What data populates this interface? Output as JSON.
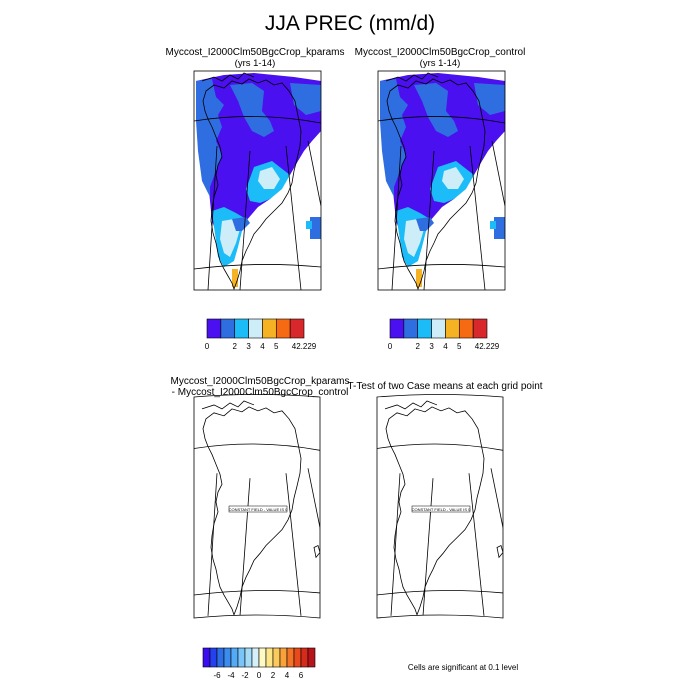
{
  "figure": {
    "title": "JJA PREC (mm/d)"
  },
  "panels": {
    "kparams": {
      "title": "Myccost_I2000Clm50BgcCrop_kparams",
      "years": "(yrs 1-14)"
    },
    "control": {
      "title": "Myccost_I2000Clm50BgcCrop_control",
      "years": "(yrs 1-14)"
    },
    "difference": {
      "title_line1": "Myccost_I2000Clm50BgcCrop_kparams",
      "title_line2": "- Myccost_I2000Clm50BgcCrop_control",
      "center_label": "CONSTANT FIELD - VALUE IS 0"
    },
    "ttest": {
      "title": "T-Test of two Case means at each grid point",
      "center_label": "CONSTANT FIELD - VALUE IS 0",
      "note": "Cells are significant at 0.1 level"
    }
  },
  "chart_data": [
    {
      "type": "heatmap",
      "name": "Myccost_I2000Clm50BgcCrop_kparams (yrs 1-14)",
      "colorbar": {
        "tick_labels": [
          "0",
          "2",
          "3",
          "4",
          "5",
          "42.229"
        ],
        "levels": [
          0,
          1,
          2,
          3,
          4,
          5,
          6,
          42.229
        ],
        "colors": [
          "#4a10ef",
          "#2f6ee0",
          "#4aa6ee",
          "#1bbcf7",
          "#cdeef8",
          "#f5b324",
          "#f56a12",
          "#d9282b"
        ]
      },
      "regions_mm_per_day": {
        "north_interior": "0-1",
        "north_coast": "1-2",
        "central_interior": "0-1",
        "southwest_coast": "1-3",
        "south_interior": "3-4",
        "southern_tip": "4-5"
      }
    },
    {
      "type": "heatmap",
      "name": "Myccost_I2000Clm50BgcCrop_control (yrs 1-14)",
      "colorbar": {
        "tick_labels": [
          "0",
          "2",
          "3",
          "4",
          "5",
          "42.229"
        ],
        "levels": [
          0,
          1,
          2,
          3,
          4,
          5,
          6,
          42.229
        ],
        "colors": [
          "#4a10ef",
          "#2f6ee0",
          "#4aa6ee",
          "#1bbcf7",
          "#cdeef8",
          "#f5b324",
          "#f56a12",
          "#d9282b"
        ]
      },
      "regions_mm_per_day": {
        "north_interior": "0-1",
        "north_coast": "1-2",
        "central_interior": "0-1",
        "southwest_coast": "1-3",
        "south_interior": "3-4",
        "southern_tip": "4-5"
      }
    },
    {
      "type": "heatmap",
      "name": "kparams - control",
      "constant_value": 0,
      "colorbar": {
        "tick_labels": [
          "-6",
          "-4",
          "-2",
          "0",
          "2",
          "4",
          "6"
        ],
        "colors": [
          "#3b0ef0",
          "#2540ee",
          "#2d6ee5",
          "#3c8cf0",
          "#55aaf5",
          "#79c5f7",
          "#a4dcf8",
          "#d6f0fa",
          "#fff9c4",
          "#fde68a",
          "#fcc95c",
          "#f9a23a",
          "#f37426",
          "#e84a1d",
          "#d62a1a",
          "#b7131b"
        ]
      }
    },
    {
      "type": "heatmap",
      "name": "T-Test",
      "constant_value": 0,
      "significance_level": 0.1
    }
  ]
}
